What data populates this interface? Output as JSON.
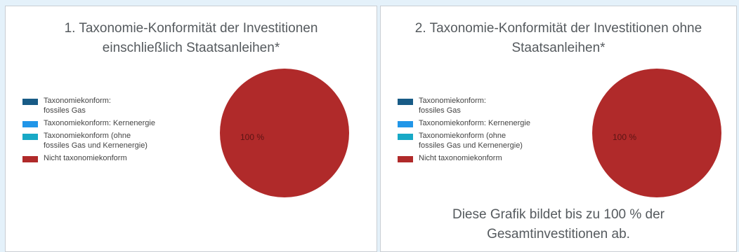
{
  "colors": {
    "fossil_gas": "#185b86",
    "nuclear": "#2196e8",
    "other_conform": "#18a9c6",
    "not_conform": "#b02a2a"
  },
  "legend": [
    {
      "label": "Taxonomiekonform: fossiles Gas",
      "color": "#185b86"
    },
    {
      "label": "Taxonomiekonform: Kernenergie",
      "color": "#2196e8"
    },
    {
      "label": "Taxonomiekonform (ohne fossiles Gas und Kernenergie)",
      "color": "#18a9c6"
    },
    {
      "label": "Nicht taxonomiekonform",
      "color": "#b02a2a"
    }
  ],
  "chart_data": [
    {
      "type": "pie",
      "title": "1. Taxonomie-Konformität der Investitionen einschließlich Staatsanleihen*",
      "slices": [
        {
          "label": "Taxonomiekonform: fossiles Gas",
          "value": 0
        },
        {
          "label": "Taxonomiekonform: Kernenergie",
          "value": 0
        },
        {
          "label": "Taxonomiekonform (ohne fossiles Gas und Kernenergie)",
          "value": 0
        },
        {
          "label": "Nicht taxonomiekonform",
          "value": 100
        }
      ],
      "data_label": "100 %",
      "legend_position": "left"
    },
    {
      "type": "pie",
      "title": "2. Taxonomie-Konformität der Investitionen ohne Staatsanleihen*",
      "slices": [
        {
          "label": "Taxonomiekonform: fossiles Gas",
          "value": 0
        },
        {
          "label": "Taxonomiekonform: Kernenergie",
          "value": 0
        },
        {
          "label": "Taxonomiekonform (ohne fossiles Gas und Kernenergie)",
          "value": 0
        },
        {
          "label": "Nicht taxonomiekonform",
          "value": 100
        }
      ],
      "data_label": "100 %",
      "legend_position": "left"
    }
  ],
  "footnote": "Diese Grafik bildet bis zu 100 % der Gesamtinvestitionen ab."
}
